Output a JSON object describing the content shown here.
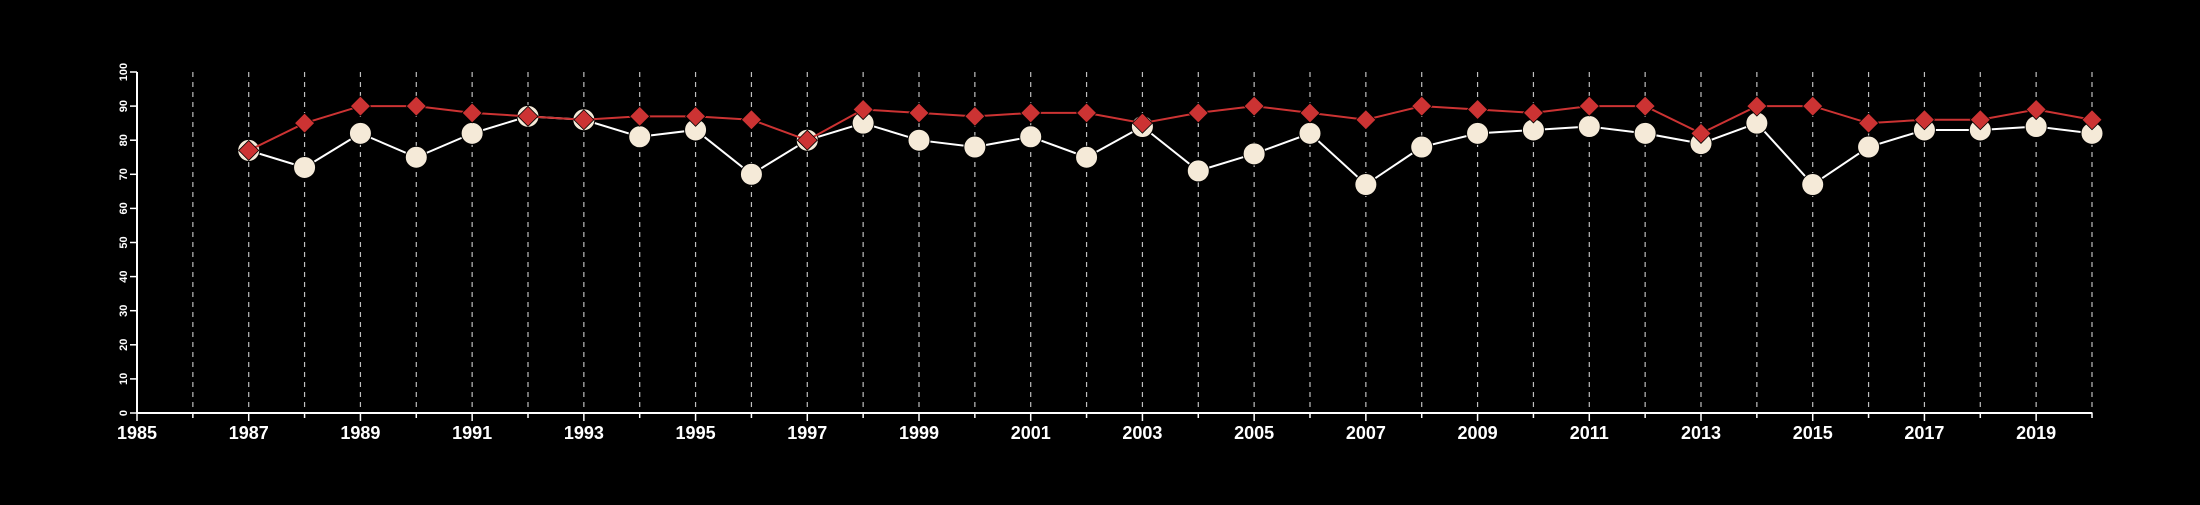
{
  "chart_data": {
    "type": "line",
    "title": "",
    "xlabel": "",
    "ylabel": "",
    "xlim": [
      1985,
      2020
    ],
    "ylim": [
      0,
      100
    ],
    "x_ticks": [
      1985,
      1987,
      1989,
      1991,
      1993,
      1995,
      1997,
      1999,
      2001,
      2003,
      2005,
      2007,
      2009,
      2011,
      2013,
      2015,
      2017,
      2019
    ],
    "y_ticks": [
      0,
      10,
      20,
      30,
      40,
      50,
      60,
      70,
      80,
      90,
      100
    ],
    "grid": "vertical-dashed-yearly",
    "legend": "none",
    "x": [
      1987,
      1988,
      1989,
      1990,
      1991,
      1992,
      1993,
      1994,
      1995,
      1996,
      1997,
      1998,
      1999,
      2000,
      2001,
      2002,
      2003,
      2004,
      2005,
      2006,
      2007,
      2008,
      2009,
      2010,
      2011,
      2012,
      2013,
      2014,
      2015,
      2016,
      2017,
      2018,
      2019,
      2020
    ],
    "series": [
      {
        "marker": "diamond",
        "color": "#cc3333",
        "line_color": "#cc3333",
        "values": [
          77,
          85,
          90,
          90,
          88,
          87,
          86,
          87,
          87,
          86,
          80,
          89,
          88,
          87,
          88,
          88,
          85,
          88,
          90,
          88,
          86,
          90,
          89,
          88,
          90,
          90,
          82,
          90,
          90,
          85,
          86,
          86,
          89,
          86
        ]
      },
      {
        "marker": "circle",
        "color": "#f5ead8",
        "line_color": "#ffffff",
        "values": [
          77,
          72,
          82,
          75,
          82,
          87,
          86,
          81,
          83,
          70,
          80,
          85,
          80,
          78,
          81,
          75,
          84,
          71,
          76,
          82,
          67,
          78,
          82,
          83,
          84,
          82,
          79,
          85,
          67,
          78,
          83,
          83,
          84,
          82
        ]
      }
    ]
  }
}
